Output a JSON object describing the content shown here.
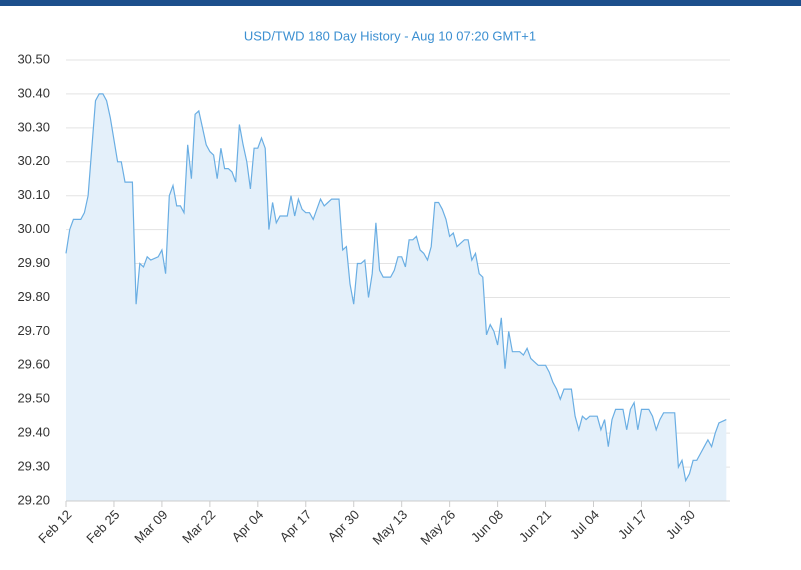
{
  "chart_data": {
    "type": "area",
    "title": "USD/TWD 180 Day History - Aug 10 07:20 GMT+1",
    "color": "#6aaee3",
    "fill": "#e4f0fa",
    "grid": true,
    "x": [
      0,
      1,
      2,
      4,
      5,
      6,
      8,
      9,
      10,
      11,
      12,
      14,
      15,
      16,
      18,
      19,
      20,
      21,
      22,
      23,
      25,
      26,
      27,
      28,
      29,
      30,
      31,
      32,
      33,
      34,
      35,
      36,
      37,
      38,
      39,
      40,
      41,
      42,
      43,
      44,
      45,
      46,
      47,
      48,
      49,
      50,
      51,
      52,
      53,
      54,
      55,
      56,
      57,
      58,
      59,
      60,
      61,
      62,
      63,
      64,
      65,
      66,
      67,
      68,
      69,
      70,
      71,
      72,
      74,
      75,
      76,
      77,
      78,
      79,
      80,
      81,
      82,
      83,
      84,
      85,
      86,
      88,
      89,
      90,
      91,
      92,
      93,
      94,
      95,
      96,
      97,
      98,
      99,
      100,
      101,
      102,
      103,
      104,
      105,
      106,
      107,
      108,
      109,
      110,
      111,
      112,
      113,
      114,
      115,
      116,
      117,
      118,
      119,
      120,
      121,
      122,
      123,
      124,
      125,
      126,
      127,
      128,
      130,
      131,
      132,
      133,
      134,
      135,
      137,
      138,
      139,
      140,
      141,
      142,
      144,
      145,
      146,
      147,
      148,
      149,
      151,
      152,
      153,
      154,
      155,
      156,
      158,
      159,
      160,
      161,
      162,
      165,
      166,
      167,
      168,
      169,
      170,
      171,
      172,
      173,
      174,
      175,
      176,
      177,
      179
    ],
    "values": [
      29.93,
      30.0,
      30.03,
      30.03,
      30.05,
      30.1,
      30.38,
      30.4,
      30.4,
      30.38,
      30.33,
      30.2,
      30.2,
      30.14,
      30.14,
      29.78,
      29.9,
      29.89,
      29.92,
      29.91,
      29.92,
      29.94,
      29.87,
      30.1,
      30.13,
      30.07,
      30.07,
      30.05,
      30.25,
      30.15,
      30.34,
      30.35,
      30.3,
      30.25,
      30.23,
      30.22,
      30.15,
      30.24,
      30.18,
      30.18,
      30.17,
      30.14,
      30.31,
      30.25,
      30.2,
      30.12,
      30.24,
      30.24,
      30.27,
      30.24,
      30.0,
      30.08,
      30.02,
      30.04,
      30.04,
      30.04,
      30.1,
      30.04,
      30.09,
      30.06,
      30.05,
      30.05,
      30.03,
      30.06,
      30.09,
      30.07,
      30.08,
      30.09,
      30.09,
      29.94,
      29.95,
      29.84,
      29.78,
      29.9,
      29.9,
      29.91,
      29.8,
      29.87,
      30.02,
      29.88,
      29.86,
      29.86,
      29.88,
      29.92,
      29.92,
      29.89,
      29.97,
      29.97,
      29.98,
      29.94,
      29.93,
      29.91,
      29.95,
      30.08,
      30.08,
      30.06,
      30.03,
      29.98,
      29.99,
      29.95,
      29.96,
      29.97,
      29.97,
      29.91,
      29.93,
      29.87,
      29.86,
      29.69,
      29.72,
      29.7,
      29.66,
      29.74,
      29.59,
      29.7,
      29.64,
      29.64,
      29.64,
      29.63,
      29.65,
      29.62,
      29.61,
      29.6,
      29.6,
      29.58,
      29.55,
      29.53,
      29.5,
      29.53,
      29.53,
      29.45,
      29.41,
      29.45,
      29.44,
      29.45,
      29.45,
      29.41,
      29.44,
      29.36,
      29.44,
      29.47,
      29.47,
      29.41,
      29.47,
      29.49,
      29.41,
      29.47,
      29.47,
      29.45,
      29.41,
      29.44,
      29.46,
      29.46,
      29.3,
      29.32,
      29.26,
      29.28,
      29.32,
      29.32,
      29.34,
      29.36,
      29.38,
      29.36,
      29.4,
      29.43,
      29.44
    ],
    "xlim": [
      0,
      180
    ],
    "xticks": [
      {
        "value": 0,
        "label": "Feb 12"
      },
      {
        "value": 13,
        "label": "Feb 25"
      },
      {
        "value": 26,
        "label": "Mar 09"
      },
      {
        "value": 39,
        "label": "Mar 22"
      },
      {
        "value": 52,
        "label": "Apr 04"
      },
      {
        "value": 65,
        "label": "Apr 17"
      },
      {
        "value": 78,
        "label": "Apr 30"
      },
      {
        "value": 91,
        "label": "May 13"
      },
      {
        "value": 104,
        "label": "May 26"
      },
      {
        "value": 117,
        "label": "Jun 08"
      },
      {
        "value": 130,
        "label": "Jun 21"
      },
      {
        "value": 143,
        "label": "Jul 04"
      },
      {
        "value": 156,
        "label": "Jul 17"
      },
      {
        "value": 169,
        "label": "Jul 30"
      }
    ],
    "ylim": [
      29.2,
      30.5
    ],
    "yticks": [
      {
        "value": 29.2,
        "label": "29.20"
      },
      {
        "value": 29.3,
        "label": "29.30"
      },
      {
        "value": 29.4,
        "label": "29.40"
      },
      {
        "value": 29.5,
        "label": "29.50"
      },
      {
        "value": 29.6,
        "label": "29.60"
      },
      {
        "value": 29.7,
        "label": "29.70"
      },
      {
        "value": 29.8,
        "label": "29.80"
      },
      {
        "value": 29.9,
        "label": "29.90"
      },
      {
        "value": 30.0,
        "label": "30.00"
      },
      {
        "value": 30.1,
        "label": "30.10"
      },
      {
        "value": 30.2,
        "label": "30.20"
      },
      {
        "value": 30.3,
        "label": "30.30"
      },
      {
        "value": 30.4,
        "label": "30.40"
      },
      {
        "value": 30.5,
        "label": "30.50"
      }
    ]
  }
}
